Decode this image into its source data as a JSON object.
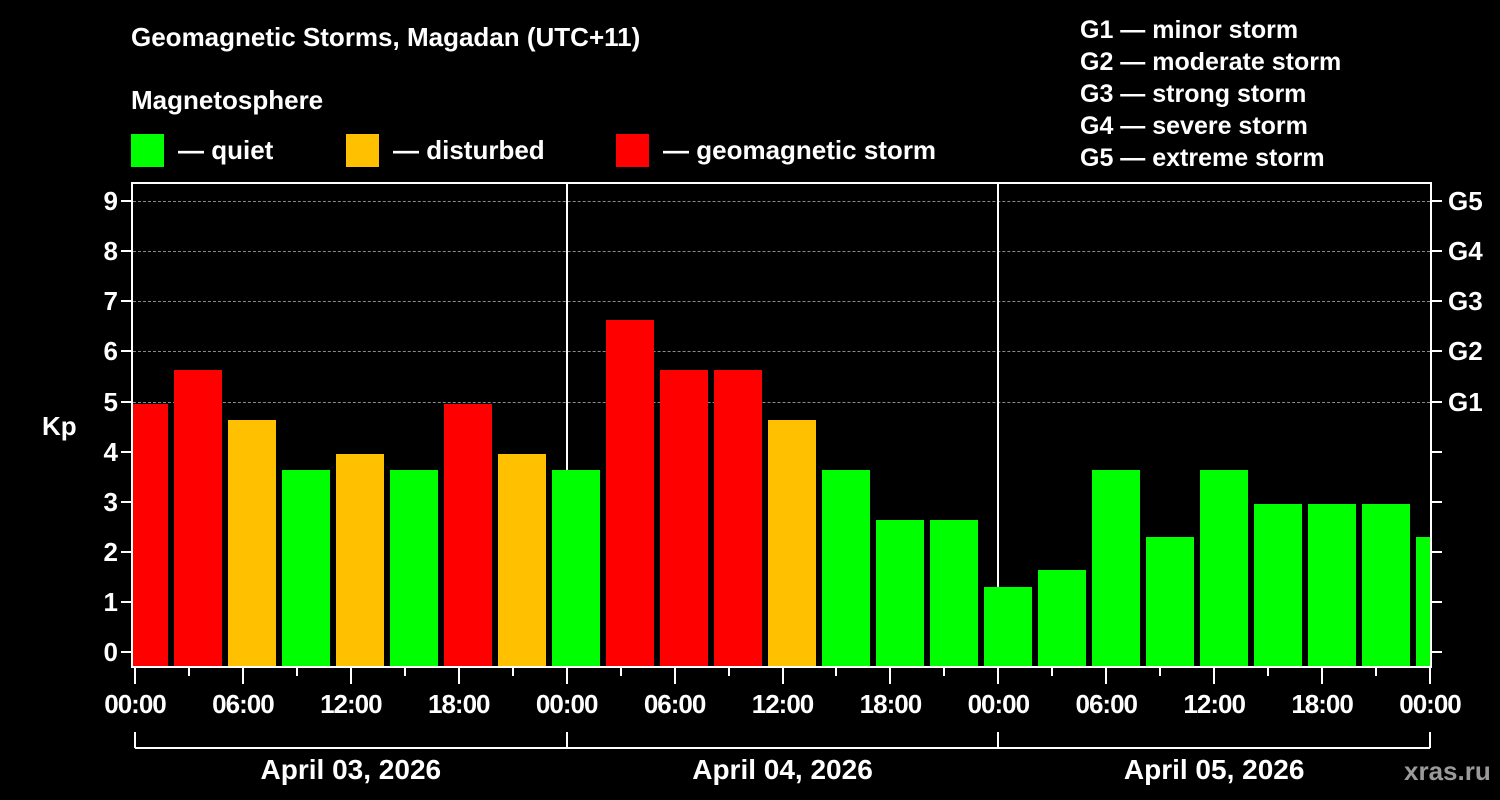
{
  "header": {
    "title": "Geomagnetic Storms, Magadan (UTC+11)",
    "subtitle": "Magnetosphere"
  },
  "legend": [
    {
      "label": "— quiet",
      "color": "#00ff00"
    },
    {
      "label": "— disturbed",
      "color": "#ffc000"
    },
    {
      "label": "— geomagnetic storm",
      "color": "#ff0000"
    }
  ],
  "g_scale": [
    "G1 — minor storm",
    "G2 — moderate storm",
    "G3 — strong storm",
    "G4 — severe storm",
    "G5 — extreme storm"
  ],
  "axis": {
    "ylabel": "Kp",
    "yticks": [
      "0",
      "1",
      "2",
      "3",
      "4",
      "5",
      "6",
      "7",
      "8",
      "9"
    ],
    "gticks": [
      {
        "label": "G1",
        "kp": 5
      },
      {
        "label": "G2",
        "kp": 6
      },
      {
        "label": "G3",
        "kp": 7
      },
      {
        "label": "G4",
        "kp": 8
      },
      {
        "label": "G5",
        "kp": 9
      }
    ],
    "xticks": [
      "00:00",
      "06:00",
      "12:00",
      "18:00",
      "00:00",
      "06:00",
      "12:00",
      "18:00",
      "00:00",
      "06:00",
      "12:00",
      "18:00",
      "00:00"
    ],
    "days": [
      "April 03, 2026",
      "April 04, 2026",
      "April 05, 2026"
    ]
  },
  "watermark": "xras.ru",
  "chart_data": {
    "type": "bar",
    "title": "Geomagnetic Storms, Magadan (UTC+11)",
    "subtitle": "Magnetosphere",
    "xlabel": "",
    "ylabel": "Kp",
    "ylim": [
      0,
      9
    ],
    "grid": "horizontal dashed at Kp 5–9",
    "legend": [
      "quiet",
      "disturbed",
      "geomagnetic storm"
    ],
    "interval_hours": 3,
    "categories": [
      "Apr 03 00:00",
      "Apr 03 03:00",
      "Apr 03 06:00",
      "Apr 03 09:00",
      "Apr 03 12:00",
      "Apr 03 15:00",
      "Apr 03 18:00",
      "Apr 03 21:00",
      "Apr 04 00:00",
      "Apr 04 03:00",
      "Apr 04 06:00",
      "Apr 04 09:00",
      "Apr 04 12:00",
      "Apr 04 15:00",
      "Apr 04 18:00",
      "Apr 04 21:00",
      "Apr 05 00:00",
      "Apr 05 03:00",
      "Apr 05 06:00",
      "Apr 05 09:00",
      "Apr 05 12:00",
      "Apr 05 15:00",
      "Apr 05 18:00",
      "Apr 05 21:00",
      "Apr 06 00:00"
    ],
    "values": [
      5.0,
      5.67,
      4.67,
      3.67,
      4.0,
      3.67,
      5.0,
      4.0,
      3.67,
      6.67,
      5.67,
      5.67,
      4.67,
      3.67,
      2.67,
      2.67,
      1.33,
      1.67,
      3.67,
      2.33,
      3.67,
      3.0,
      3.0,
      3.0,
      2.33
    ],
    "status": [
      "storm",
      "storm",
      "disturbed",
      "quiet",
      "disturbed",
      "quiet",
      "storm",
      "disturbed",
      "quiet",
      "storm",
      "storm",
      "storm",
      "disturbed",
      "quiet",
      "quiet",
      "quiet",
      "quiet",
      "quiet",
      "quiet",
      "quiet",
      "quiet",
      "quiet",
      "quiet",
      "quiet",
      "quiet"
    ],
    "colors": {
      "quiet": "#00ff00",
      "disturbed": "#ffc000",
      "storm": "#ff0000"
    }
  }
}
